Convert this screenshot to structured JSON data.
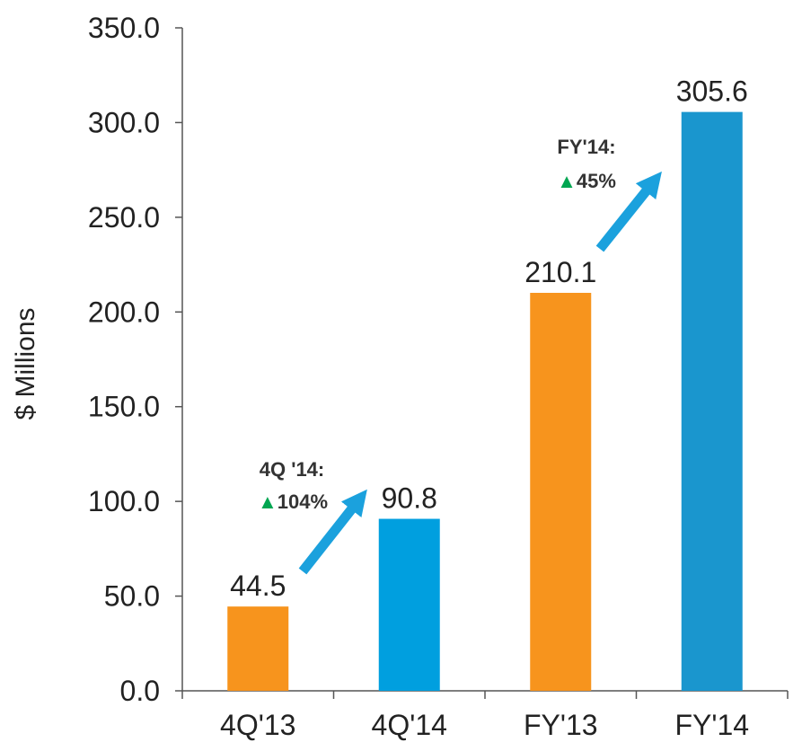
{
  "chart_data": {
    "type": "bar",
    "categories": [
      "4Q'13",
      "4Q'14",
      "FY'13",
      "FY'14"
    ],
    "values": [
      44.5,
      90.8,
      210.1,
      305.6
    ],
    "value_labels": [
      "44.5",
      "90.8",
      "210.1",
      "305.6"
    ],
    "bar_colors": [
      "#F7941D",
      "#009FDF",
      "#F7941D",
      "#1A96CE"
    ],
    "title": "",
    "xlabel": "",
    "ylabel": "$ Millions",
    "ylim": [
      0,
      350
    ],
    "yticks": [
      0,
      50,
      100,
      150,
      200,
      250,
      300,
      350
    ],
    "ytick_labels": [
      "0.0",
      "50.0",
      "100.0",
      "150.0",
      "200.0",
      "250.0",
      "300.0",
      "350.0"
    ],
    "grid": false,
    "legend": "none",
    "annotations": [
      {
        "line1": "4Q '14:",
        "triangle": "▲",
        "change": "104%",
        "from_category": "4Q'13",
        "to_category": "4Q'14"
      },
      {
        "line1": "FY'14:",
        "triangle": "▲",
        "change": "45%",
        "from_category": "FY'13",
        "to_category": "FY'14"
      }
    ],
    "colors": {
      "arrow": "#1BA1DD",
      "triangle": "#00A651",
      "axis": "#555555"
    }
  }
}
